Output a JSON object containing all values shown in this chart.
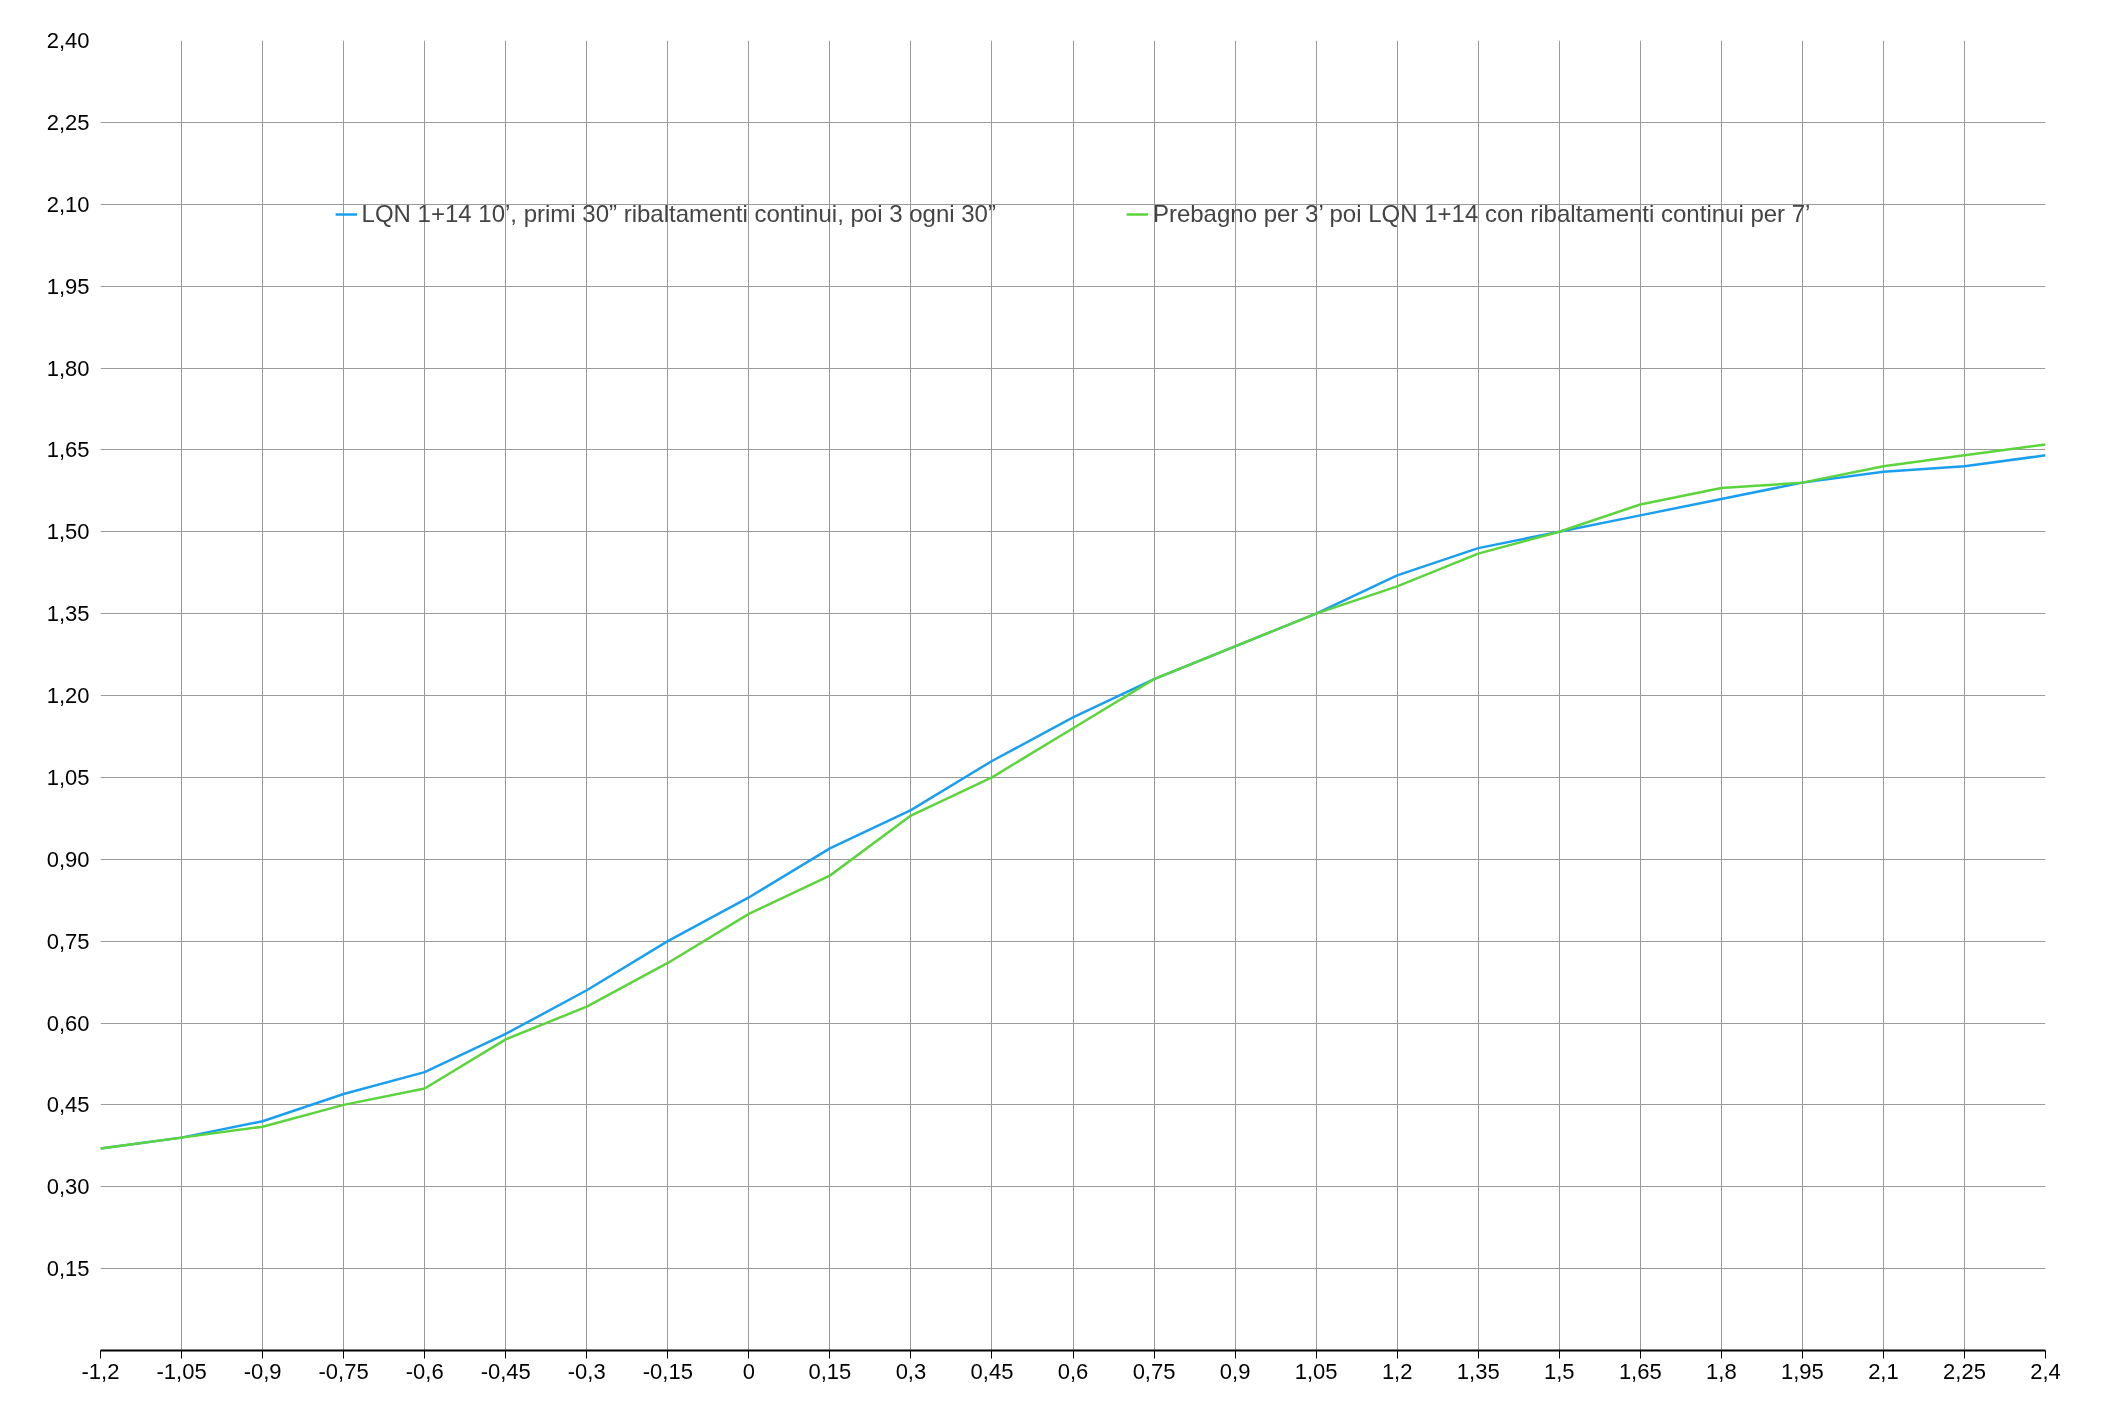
{
  "chart_data": {
    "type": "line",
    "x": [
      -1.2,
      -1.05,
      -0.9,
      -0.75,
      -0.6,
      -0.45,
      -0.3,
      -0.15,
      0,
      0.15,
      0.3,
      0.45,
      0.6,
      0.75,
      0.9,
      1.05,
      1.2,
      1.35,
      1.5,
      1.65,
      1.8,
      1.95,
      2.1,
      2.25,
      2.4
    ],
    "series": [
      {
        "name": "LQN 1+14 10’, primi 30” ribaltamenti continui, poi 3 ogni 30”",
        "color": "#1a9ff0",
        "values": [
          0.37,
          0.39,
          0.42,
          0.47,
          0.51,
          0.58,
          0.66,
          0.75,
          0.83,
          0.92,
          0.99,
          1.08,
          1.16,
          1.23,
          1.29,
          1.35,
          1.42,
          1.47,
          1.5,
          1.53,
          1.56,
          1.59,
          1.61,
          1.62,
          1.64
        ]
      },
      {
        "name": "Prebagno per 3’ poi LQN 1+14 con ribaltamenti continui per 7’",
        "color": "#5cd43c",
        "values": [
          0.37,
          0.39,
          0.41,
          0.45,
          0.48,
          0.57,
          0.63,
          0.71,
          0.8,
          0.87,
          0.98,
          1.05,
          1.14,
          1.23,
          1.29,
          1.35,
          1.4,
          1.46,
          1.5,
          1.55,
          1.58,
          1.59,
          1.62,
          1.64,
          1.66
        ]
      }
    ],
    "xlim": [
      -1.2,
      2.4
    ],
    "xticks": [
      {
        "value": -1.2,
        "label": "-1,2"
      },
      {
        "value": -1.05,
        "label": "-1,05"
      },
      {
        "value": -0.9,
        "label": "-0,9"
      },
      {
        "value": -0.75,
        "label": "-0,75"
      },
      {
        "value": -0.6,
        "label": "-0,6"
      },
      {
        "value": -0.45,
        "label": "-0,45"
      },
      {
        "value": -0.3,
        "label": "-0,3"
      },
      {
        "value": -0.15,
        "label": "-0,15"
      },
      0,
      {
        "value": 0.15,
        "label": "0,15"
      },
      {
        "value": 0.3,
        "label": "0,3"
      },
      {
        "value": 0.45,
        "label": "0,45"
      },
      {
        "value": 0.6,
        "label": "0,6"
      },
      {
        "value": 0.75,
        "label": "0,75"
      },
      {
        "value": 0.9,
        "label": "0,9"
      },
      {
        "value": 1.05,
        "label": "1,05"
      },
      {
        "value": 1.2,
        "label": "1,2"
      },
      {
        "value": 1.35,
        "label": "1,35"
      },
      {
        "value": 1.5,
        "label": "1,5"
      },
      {
        "value": 1.65,
        "label": "1,65"
      },
      {
        "value": 1.8,
        "label": "1,8"
      },
      {
        "value": 1.95,
        "label": "1,95"
      },
      {
        "value": 2.1,
        "label": "2,1"
      },
      {
        "value": 2.25,
        "label": "2,25"
      },
      {
        "value": 2.4,
        "label": "2,4"
      }
    ],
    "ylim": [
      0,
      2.4
    ],
    "yticks": [
      {
        "value": 0,
        "label": null
      },
      {
        "value": 0.15,
        "label": "0,15"
      },
      {
        "value": 0.3,
        "label": "0,30"
      },
      {
        "value": 0.45,
        "label": "0,45"
      },
      {
        "value": 0.6,
        "label": "0,60"
      },
      {
        "value": 0.75,
        "label": "0,75"
      },
      {
        "value": 0.9,
        "label": "0,90"
      },
      {
        "value": 1.05,
        "label": "1,05"
      },
      {
        "value": 1.2,
        "label": "1,20"
      },
      {
        "value": 1.35,
        "label": "1,35"
      },
      {
        "value": 1.5,
        "label": "1,50"
      },
      {
        "value": 1.65,
        "label": "1,65"
      },
      {
        "value": 1.8,
        "label": "1,80"
      },
      {
        "value": 1.95,
        "label": "1,95"
      },
      {
        "value": 2.1,
        "label": "2,10"
      },
      {
        "value": 2.25,
        "label": "2,25"
      },
      {
        "value": 2.4,
        "label": "2,40"
      }
    ],
    "grid": true,
    "legend": "top",
    "marker": "none",
    "line_style": "solid"
  }
}
